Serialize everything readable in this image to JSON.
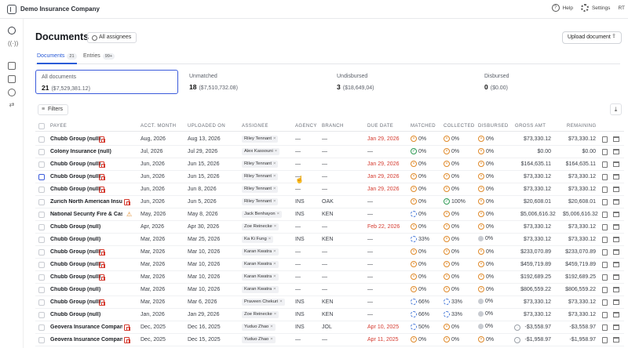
{
  "app": {
    "company": "Demo Insurance Company",
    "help": "Help",
    "settings": "Settings",
    "avatar": "RT"
  },
  "page": {
    "title": "Documents",
    "assignees": "All assignees",
    "upload": "Upload document",
    "filters": "Filters"
  },
  "tabs": [
    {
      "label": "Documents",
      "count": "21"
    },
    {
      "label": "Entries",
      "count": "99+"
    }
  ],
  "cards": [
    {
      "label": "All documents",
      "count": "21",
      "amount": "($7,529,381.12)"
    },
    {
      "label": "Unmatched",
      "count": "18",
      "amount": "($7,510,732.08)"
    },
    {
      "label": "Undisbursed",
      "count": "3",
      "amount": "($18,649,04)"
    },
    {
      "label": "Disbursed",
      "count": "0",
      "amount": "($0.00)"
    }
  ],
  "columns": [
    "PAYEE",
    "ACCT. MONTH",
    "UPLOADED ON",
    "ASSIGNEE",
    "AGENCY",
    "BRANCH",
    "DUE DATE",
    "MATCHED",
    "COLLECTED",
    "DISBURSED",
    "GROSS AMT",
    "REMAINING"
  ],
  "rows": [
    {
      "payee": "Chubb Group (null)",
      "flag": "dup",
      "month": "Aug, 2026",
      "uploaded": "Aug 13, 2026",
      "assignee": "Riley Tennant",
      "agency": "—",
      "branch": "—",
      "due": "Jan 29, 2026",
      "due_red": true,
      "matched": "0%",
      "m_ic": "x",
      "collected": "0%",
      "c_ic": "x",
      "disbursed": "0%",
      "d_ic": "x",
      "gross": "$73,330.12",
      "remaining": "$73,330.12"
    },
    {
      "payee": "Colony Insurance (null)",
      "flag": "",
      "month": "Jul, 2026",
      "uploaded": "Jul 29, 2026",
      "assignee": "Alex Kassouni",
      "agency": "—",
      "branch": "—",
      "due": "—",
      "due_red": false,
      "matched": "0%",
      "m_ic": "ok",
      "collected": "0%",
      "c_ic": "x",
      "disbursed": "0%",
      "d_ic": "x",
      "gross": "$0.00",
      "remaining": "$0.00"
    },
    {
      "payee": "Chubb Group (null)",
      "flag": "dup",
      "month": "Jun, 2026",
      "uploaded": "Jun 15, 2026",
      "assignee": "Riley Tennant",
      "agency": "—",
      "branch": "—",
      "due": "Jan 29, 2026",
      "due_red": true,
      "matched": "0%",
      "m_ic": "x",
      "collected": "0%",
      "c_ic": "x",
      "disbursed": "0%",
      "d_ic": "x",
      "gross": "$164,635.11",
      "remaining": "$164,635.11"
    },
    {
      "payee": "Chubb Group (null)",
      "flag": "dup",
      "month": "Jun, 2026",
      "uploaded": "Jun 15, 2026",
      "assignee": "Riley Tennant",
      "agency": "—",
      "branch": "—",
      "due": "Jan 29, 2026",
      "due_red": true,
      "matched": "0%",
      "m_ic": "x",
      "collected": "0%",
      "c_ic": "x",
      "disbursed": "0%",
      "d_ic": "x",
      "gross": "$73,330.12",
      "remaining": "$73,330.12"
    },
    {
      "payee": "Chubb Group (null)",
      "flag": "dup",
      "month": "Jun, 2026",
      "uploaded": "Jun 8, 2026",
      "assignee": "Riley Tennant",
      "agency": "—",
      "branch": "—",
      "due": "Jan 29, 2026",
      "due_red": true,
      "matched": "0%",
      "m_ic": "x",
      "collected": "0%",
      "c_ic": "x",
      "disbursed": "0%",
      "d_ic": "x",
      "gross": "$73,330.12",
      "remaining": "$73,330.12"
    },
    {
      "payee": "Zurich North American Insu...",
      "flag": "dup",
      "month": "Jun, 2026",
      "uploaded": "Jun 5, 2026",
      "assignee": "Riley Tennant",
      "agency": "INS",
      "branch": "OAK",
      "due": "—",
      "due_red": false,
      "matched": "0%",
      "m_ic": "x",
      "collected": "100%",
      "c_ic": "ok",
      "disbursed": "0%",
      "d_ic": "x",
      "gross": "$20,608.01",
      "remaining": "$20,608.01"
    },
    {
      "payee": "National Security Fire & Cas...",
      "flag": "warn",
      "month": "May, 2026",
      "uploaded": "May 8, 2026",
      "assignee": "Jack Benhayon",
      "agency": "INS",
      "branch": "KEN",
      "due": "—",
      "due_red": false,
      "matched": "0%",
      "m_ic": "pt",
      "collected": "0%",
      "c_ic": "x",
      "disbursed": "0%",
      "d_ic": "x",
      "gross": "$5,006,616.32",
      "remaining": "$5,006,616.32"
    },
    {
      "payee": "Chubb Group (null)",
      "flag": "",
      "month": "Apr, 2026",
      "uploaded": "Apr 30, 2026",
      "assignee": "Zoe Reinecke",
      "agency": "—",
      "branch": "—",
      "due": "Feb 22, 2026",
      "due_red": true,
      "matched": "0%",
      "m_ic": "x",
      "collected": "0%",
      "c_ic": "x",
      "disbursed": "0%",
      "d_ic": "x",
      "gross": "$73,330.12",
      "remaining": "$73,330.12"
    },
    {
      "payee": "Chubb Group (null)",
      "flag": "",
      "month": "Mar, 2026",
      "uploaded": "Mar 25, 2026",
      "assignee": "Ka Ki Fung",
      "agency": "INS",
      "branch": "KEN",
      "due": "—",
      "due_red": false,
      "matched": "33%",
      "m_ic": "pt",
      "collected": "0%",
      "c_ic": "x",
      "disbursed": "0%",
      "d_ic": "dot",
      "gross": "$73,330.12",
      "remaining": "$73,330.12"
    },
    {
      "payee": "Chubb Group (null)",
      "flag": "dup",
      "month": "Mar, 2026",
      "uploaded": "Mar 10, 2026",
      "assignee": "Karan Kwatra",
      "agency": "—",
      "branch": "—",
      "due": "—",
      "due_red": false,
      "matched": "0%",
      "m_ic": "x",
      "collected": "0%",
      "c_ic": "x",
      "disbursed": "0%",
      "d_ic": "x",
      "gross": "$233,070.89",
      "remaining": "$233,070.89"
    },
    {
      "payee": "Chubb Group (null)",
      "flag": "dup",
      "month": "Mar, 2026",
      "uploaded": "Mar 10, 2026",
      "assignee": "Karan Kwatra",
      "agency": "—",
      "branch": "—",
      "due": "—",
      "due_red": false,
      "matched": "0%",
      "m_ic": "x",
      "collected": "0%",
      "c_ic": "x",
      "disbursed": "0%",
      "d_ic": "x",
      "gross": "$459,719.89",
      "remaining": "$459,719.89"
    },
    {
      "payee": "Chubb Group (null)",
      "flag": "dup",
      "month": "Mar, 2026",
      "uploaded": "Mar 10, 2026",
      "assignee": "Karan Kwatra",
      "agency": "—",
      "branch": "—",
      "due": "—",
      "due_red": false,
      "matched": "0%",
      "m_ic": "x",
      "collected": "0%",
      "c_ic": "x",
      "disbursed": "0%",
      "d_ic": "x",
      "gross": "$192,689.25",
      "remaining": "$192,689.25"
    },
    {
      "payee": "Chubb Group (null)",
      "flag": "",
      "month": "Mar, 2026",
      "uploaded": "Mar 10, 2026",
      "assignee": "Karan Kwatra",
      "agency": "—",
      "branch": "—",
      "due": "—",
      "due_red": false,
      "matched": "0%",
      "m_ic": "x",
      "collected": "0%",
      "c_ic": "x",
      "disbursed": "0%",
      "d_ic": "x",
      "gross": "$806,559.22",
      "remaining": "$806,559.22"
    },
    {
      "payee": "Chubb Group (null)",
      "flag": "dup",
      "month": "Mar, 2026",
      "uploaded": "Mar 6, 2026",
      "assignee": "Praveen Chekuri",
      "agency": "INS",
      "branch": "KEN",
      "due": "—",
      "due_red": false,
      "matched": "66%",
      "m_ic": "pt",
      "collected": "33%",
      "c_ic": "pt",
      "disbursed": "0%",
      "d_ic": "dot",
      "gross": "$73,330.12",
      "remaining": "$73,330.12"
    },
    {
      "payee": "Chubb Group (null)",
      "flag": "",
      "month": "Jan, 2026",
      "uploaded": "Jan 29, 2026",
      "assignee": "Zoe Reinecke",
      "agency": "INS",
      "branch": "KEN",
      "due": "—",
      "due_red": false,
      "matched": "66%",
      "m_ic": "pt",
      "collected": "33%",
      "c_ic": "pt",
      "disbursed": "0%",
      "d_ic": "dot",
      "gross": "$73,330.12",
      "remaining": "$73,330.12"
    },
    {
      "payee": "Geovera Insurance Compan...",
      "flag": "dup",
      "month": "Dec, 2025",
      "uploaded": "Dec 16, 2025",
      "assignee": "Yuduo Zhao",
      "agency": "INS",
      "branch": "JOL",
      "due": "Apr 10, 2025",
      "due_red": true,
      "matched": "50%",
      "m_ic": "pt",
      "collected": "0%",
      "c_ic": "x",
      "disbursed": "0%",
      "d_ic": "dot",
      "gross": "-$3,558.97",
      "g_ic": true,
      "remaining": "-$3,558.97"
    },
    {
      "payee": "Geovera Insurance Compan...",
      "flag": "dup",
      "month": "Dec, 2025",
      "uploaded": "Dec 15, 2025",
      "assignee": "Yuduo Zhao",
      "agency": "—",
      "branch": "—",
      "due": "Apr 11, 2025",
      "due_red": true,
      "matched": "0%",
      "m_ic": "x",
      "collected": "0%",
      "c_ic": "x",
      "disbursed": "0%",
      "d_ic": "x",
      "gross": "-$1,958.97",
      "g_ic": true,
      "remaining": "-$1,958.97"
    }
  ]
}
